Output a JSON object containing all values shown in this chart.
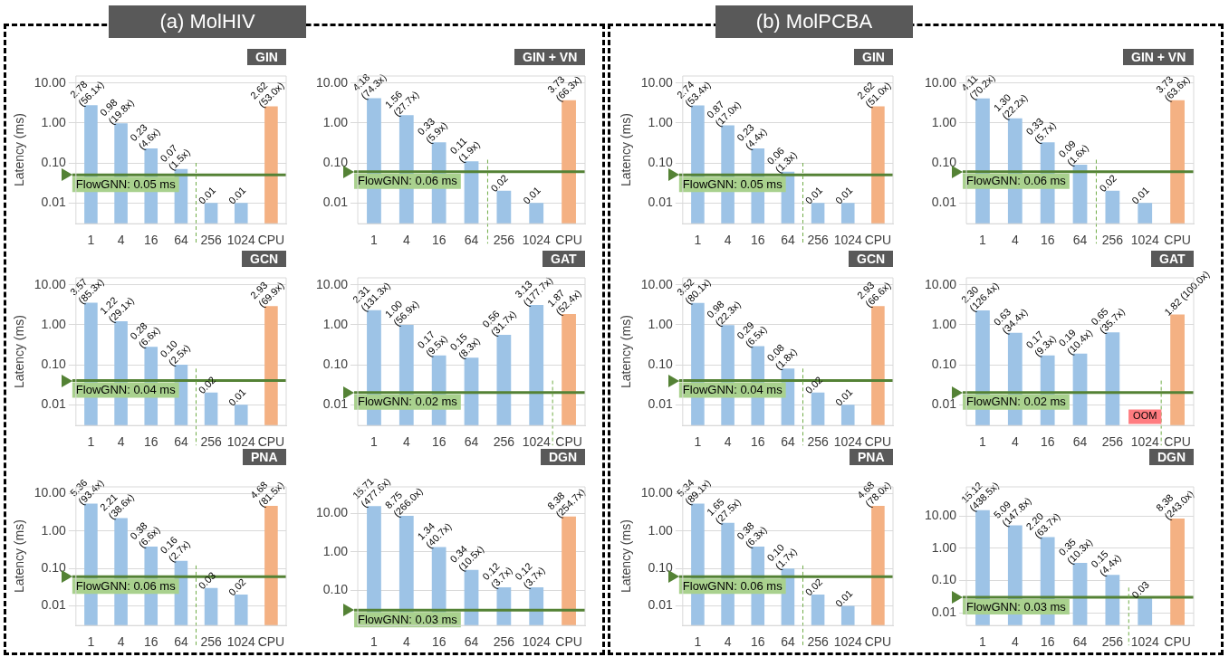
{
  "chart_data": [
    {
      "type": "bar",
      "subtitle": "(a) MolHIV",
      "title": "GIN",
      "ylabel": "Latency (ms)",
      "categories": [
        "1",
        "4",
        "16",
        "64",
        "256",
        "1024",
        "CPU"
      ],
      "values": [
        2.78,
        0.98,
        0.23,
        0.07,
        0.01,
        0.01,
        2.62
      ],
      "colors": [
        "#9dc3e6",
        "#9dc3e6",
        "#9dc3e6",
        "#9dc3e6",
        "#9dc3e6",
        "#9dc3e6",
        "#f4b183"
      ],
      "value_labels": [
        "2.78 (56.1x)",
        "0.98 (19.8x)",
        "0.23 (4.6x)",
        "0.07 (1.5x)",
        "0.01",
        "0.01",
        "2.62 (53.0x)"
      ],
      "log": "y",
      "ylim": [
        0.003,
        15
      ],
      "yticks": [
        {
          "value": 0.01,
          "label": "0.01"
        },
        {
          "value": 0.1,
          "label": "0.10"
        },
        {
          "value": 1,
          "label": "1.00"
        },
        {
          "value": 10,
          "label": "10.00"
        }
      ],
      "grid": "y",
      "ref_lines": [
        {
          "axis": "y",
          "value": 0.05,
          "label": "FlowGNN: 0.05 ms",
          "color": "#548235"
        },
        {
          "axis": "x",
          "value": "256",
          "line_style": "dashed",
          "color": "#70ad47"
        }
      ]
    },
    {
      "type": "bar",
      "title": "GIN + VN",
      "categories": [
        "1",
        "4",
        "16",
        "64",
        "256",
        "1024",
        "CPU"
      ],
      "values": [
        4.18,
        1.56,
        0.33,
        0.11,
        0.02,
        0.01,
        3.73
      ],
      "colors": [
        "#9dc3e6",
        "#9dc3e6",
        "#9dc3e6",
        "#9dc3e6",
        "#9dc3e6",
        "#9dc3e6",
        "#f4b183"
      ],
      "value_labels": [
        "4.18 (74.3x)",
        "1.56 (27.7x)",
        "0.33 (5.9x)",
        "0.11 (1.9x)",
        "0.02",
        "0.01",
        "3.73 (66.3x)"
      ],
      "log": "y",
      "ylim": [
        0.003,
        15
      ],
      "yticks": [
        {
          "value": 0.01,
          "label": "0.01"
        },
        {
          "value": 0.1,
          "label": "0.10"
        },
        {
          "value": 1,
          "label": "1.00"
        },
        {
          "value": 10,
          "label": "10.00"
        }
      ],
      "grid": "y",
      "ref_lines": [
        {
          "axis": "y",
          "value": 0.06,
          "label": "FlowGNN: 0.06 ms",
          "color": "#548235"
        },
        {
          "axis": "x",
          "value": "256",
          "line_style": "dashed",
          "color": "#70ad47"
        }
      ]
    },
    {
      "type": "bar",
      "title": "GIN",
      "ylabel": "Latency (ms)",
      "categories": [
        "1",
        "4",
        "16",
        "64",
        "256",
        "1024",
        "CPU"
      ],
      "values": [
        2.74,
        0.87,
        0.23,
        0.06,
        0.01,
        0.01,
        2.62
      ],
      "colors": [
        "#9dc3e6",
        "#9dc3e6",
        "#9dc3e6",
        "#9dc3e6",
        "#9dc3e6",
        "#9dc3e6",
        "#f4b183"
      ],
      "subtitle": "(b) MolPCBA",
      "value_labels": [
        "2.74 (53.4x)",
        "0.87 (17.0x)",
        "0.23 (4.4x)",
        "0.06 (1.3x)",
        "0.01",
        "0.01",
        "2.62 (51.0x)"
      ],
      "log": "y",
      "ylim": [
        0.003,
        15
      ],
      "yticks": [
        {
          "value": 0.01,
          "label": "0.01"
        },
        {
          "value": 0.1,
          "label": "0.10"
        },
        {
          "value": 1,
          "label": "1.00"
        },
        {
          "value": 10,
          "label": "10.00"
        }
      ],
      "grid": "y",
      "ref_lines": [
        {
          "axis": "y",
          "value": 0.05,
          "label": "FlowGNN: 0.05 ms",
          "color": "#548235"
        },
        {
          "axis": "x",
          "value": "256",
          "line_style": "dashed",
          "color": "#70ad47"
        }
      ]
    },
    {
      "type": "bar",
      "title": "GIN + VN",
      "categories": [
        "1",
        "4",
        "16",
        "64",
        "256",
        "1024",
        "CPU"
      ],
      "values": [
        4.11,
        1.3,
        0.33,
        0.09,
        0.02,
        0.01,
        3.73
      ],
      "colors": [
        "#9dc3e6",
        "#9dc3e6",
        "#9dc3e6",
        "#9dc3e6",
        "#9dc3e6",
        "#9dc3e6",
        "#f4b183"
      ],
      "value_labels": [
        "4.11 (70.2x)",
        "1.30 (22.2x)",
        "0.33 (5.7x)",
        "0.09 (1.6x)",
        "0.02",
        "0.01",
        "3.73 (63.6x)"
      ],
      "log": "y",
      "ylim": [
        0.003,
        15
      ],
      "yticks": [
        {
          "value": 0.01,
          "label": "0.01"
        },
        {
          "value": 0.1,
          "label": "0.10"
        },
        {
          "value": 1,
          "label": "1.00"
        },
        {
          "value": 10,
          "label": "10.00"
        }
      ],
      "grid": "y",
      "ref_lines": [
        {
          "axis": "y",
          "value": 0.06,
          "label": "FlowGNN: 0.06 ms",
          "color": "#548235"
        },
        {
          "axis": "x",
          "value": "256",
          "line_style": "dashed",
          "color": "#70ad47"
        }
      ]
    },
    {
      "type": "bar",
      "title": "GCN",
      "ylabel": "Latency (ms)",
      "categories": [
        "1",
        "4",
        "16",
        "64",
        "256",
        "1024",
        "CPU"
      ],
      "values": [
        3.57,
        1.22,
        0.28,
        0.1,
        0.02,
        0.01,
        2.93
      ],
      "colors": [
        "#9dc3e6",
        "#9dc3e6",
        "#9dc3e6",
        "#9dc3e6",
        "#9dc3e6",
        "#9dc3e6",
        "#f4b183"
      ],
      "value_labels": [
        "3.57 (85.3x)",
        "1.22 (29.1x)",
        "0.28 (6.6x)",
        "0.10 (2.5x)",
        "0.02",
        "0.01",
        "2.93 (69.9x)"
      ],
      "log": "y",
      "ylim": [
        0.003,
        15
      ],
      "yticks": [
        {
          "value": 0.01,
          "label": "0.01"
        },
        {
          "value": 0.1,
          "label": "0.10"
        },
        {
          "value": 1,
          "label": "1.00"
        },
        {
          "value": 10,
          "label": "10.00"
        }
      ],
      "grid": "y",
      "ref_lines": [
        {
          "axis": "y",
          "value": 0.04,
          "label": "FlowGNN: 0.04 ms",
          "color": "#548235"
        },
        {
          "axis": "x",
          "value": "256",
          "line_style": "dashed",
          "color": "#70ad47"
        }
      ]
    },
    {
      "type": "bar",
      "title": "GAT",
      "categories": [
        "1",
        "4",
        "16",
        "64",
        "256",
        "1024",
        "CPU"
      ],
      "values": [
        2.31,
        1.0,
        0.17,
        0.15,
        0.56,
        3.13,
        1.87
      ],
      "colors": [
        "#9dc3e6",
        "#9dc3e6",
        "#9dc3e6",
        "#9dc3e6",
        "#9dc3e6",
        "#9dc3e6",
        "#f4b183"
      ],
      "value_labels": [
        "2.31 (131.3x)",
        "1.00 (56.9x)",
        "0.17 (9.5x)",
        "0.15 (8.3x)",
        "0.56 (31.7x)",
        "3.13 (177.7x)",
        "1.87 (52.4x)"
      ],
      "log": "y",
      "ylim": [
        0.003,
        15
      ],
      "yticks": [
        {
          "value": 0.01,
          "label": "0.01"
        },
        {
          "value": 0.1,
          "label": "0.10"
        },
        {
          "value": 1,
          "label": "1.00"
        },
        {
          "value": 10,
          "label": "10.00"
        }
      ],
      "grid": "y",
      "ref_lines": [
        {
          "axis": "y",
          "value": 0.02,
          "label": "FlowGNN: 0.02 ms",
          "color": "#548235"
        },
        {
          "axis": "x",
          "value": "CPU",
          "line_style": "dashed",
          "color": "#70ad47"
        }
      ]
    },
    {
      "type": "bar",
      "title": "GCN",
      "ylabel": "Latency (ms)",
      "categories": [
        "1",
        "4",
        "16",
        "64",
        "256",
        "1024",
        "CPU"
      ],
      "values": [
        3.52,
        0.98,
        0.29,
        0.08,
        0.02,
        0.01,
        2.93
      ],
      "colors": [
        "#9dc3e6",
        "#9dc3e6",
        "#9dc3e6",
        "#9dc3e6",
        "#9dc3e6",
        "#9dc3e6",
        "#f4b183"
      ],
      "value_labels": [
        "3.52 (80.1x)",
        "0.98 (22.3x)",
        "0.29 (6.5x)",
        "0.08 (1.8x)",
        "0.02",
        "0.01",
        "2.93 (66.6x)"
      ],
      "log": "y",
      "ylim": [
        0.003,
        15
      ],
      "yticks": [
        {
          "value": 0.01,
          "label": "0.01"
        },
        {
          "value": 0.1,
          "label": "0.10"
        },
        {
          "value": 1,
          "label": "1.00"
        },
        {
          "value": 10,
          "label": "10.00"
        }
      ],
      "grid": "y",
      "ref_lines": [
        {
          "axis": "y",
          "value": 0.04,
          "label": "FlowGNN: 0.04 ms",
          "color": "#548235"
        },
        {
          "axis": "x",
          "value": "256",
          "line_style": "dashed",
          "color": "#70ad47"
        }
      ]
    },
    {
      "type": "bar",
      "title": "GAT",
      "categories": [
        "1",
        "4",
        "16",
        "64",
        "256",
        "1024",
        "CPU"
      ],
      "values": [
        2.3,
        0.63,
        0.17,
        0.19,
        0.65,
        null,
        1.82
      ],
      "colors": [
        "#9dc3e6",
        "#9dc3e6",
        "#9dc3e6",
        "#9dc3e6",
        "#9dc3e6",
        "#9dc3e6",
        "#f4b183"
      ],
      "value_labels": [
        "2.30 (126.4x)",
        "0.63 (34.4x)",
        "0.17 (9.3x)",
        "0.19 (10.4x)",
        "0.65 (35.7x)",
        null,
        "1.82 (100.0x)"
      ],
      "log": "y",
      "ylim": [
        0.003,
        15
      ],
      "yticks": [
        {
          "value": 0.01,
          "label": "0.01"
        },
        {
          "value": 0.1,
          "label": "0.10"
        },
        {
          "value": 1,
          "label": "1.00"
        },
        {
          "value": 10,
          "label": "10.00"
        }
      ],
      "grid": "y",
      "ref_lines": [
        {
          "axis": "y",
          "value": 0.02,
          "label": "FlowGNN: 0.02 ms",
          "color": "#548235"
        },
        {
          "axis": "x",
          "value": "CPU",
          "line_style": "dashed",
          "color": "#70ad47"
        }
      ],
      "annotations": [
        {
          "text": "OOM",
          "x": "1024",
          "y": 0.005
        }
      ]
    },
    {
      "type": "bar",
      "title": "PNA",
      "ylabel": "Latency (ms)",
      "categories": [
        "1",
        "4",
        "16",
        "64",
        "256",
        "1024",
        "CPU"
      ],
      "values": [
        5.36,
        2.21,
        0.38,
        0.16,
        0.03,
        0.02,
        4.68
      ],
      "colors": [
        "#9dc3e6",
        "#9dc3e6",
        "#9dc3e6",
        "#9dc3e6",
        "#9dc3e6",
        "#9dc3e6",
        "#f4b183"
      ],
      "value_labels": [
        "5.36 (93.4x)",
        "2.21 (38.6x)",
        "0.38 (6.6x)",
        "0.16 (2.7x)",
        "0.03",
        "0.02",
        "4.68 (81.5x)"
      ],
      "log": "y",
      "ylim": [
        0.003,
        15
      ],
      "yticks": [
        {
          "value": 0.01,
          "label": "0.01"
        },
        {
          "value": 0.1,
          "label": "0.10"
        },
        {
          "value": 1,
          "label": "1.00"
        },
        {
          "value": 10,
          "label": "10.00"
        }
      ],
      "grid": "y",
      "ref_lines": [
        {
          "axis": "y",
          "value": 0.06,
          "label": "FlowGNN: 0.06 ms",
          "color": "#548235"
        },
        {
          "axis": "x",
          "value": "256",
          "line_style": "dashed",
          "color": "#70ad47"
        }
      ]
    },
    {
      "type": "bar",
      "title": "DGN",
      "categories": [
        "1",
        "4",
        "16",
        "64",
        "256",
        "1024",
        "CPU"
      ],
      "values": [
        15.71,
        8.75,
        1.34,
        0.34,
        0.12,
        0.12,
        8.38
      ],
      "colors": [
        "#9dc3e6",
        "#9dc3e6",
        "#9dc3e6",
        "#9dc3e6",
        "#9dc3e6",
        "#9dc3e6",
        "#f4b183"
      ],
      "value_labels": [
        "15.71 (477.6x)",
        "8.75 (266.0x)",
        "1.34 (40.7x)",
        "0.34 (10.5x)",
        "0.12 (3.7x)",
        "0.12 (3.7x)",
        "8.38 (254.7x)"
      ],
      "log": "y",
      "ylim": [
        0.012,
        50
      ],
      "yticks": [
        {
          "value": 0.1,
          "label": "0.10"
        },
        {
          "value": 1,
          "label": "1.00"
        },
        {
          "value": 10,
          "label": "10.00"
        }
      ],
      "grid": "y",
      "ref_lines": [
        {
          "axis": "y",
          "value": 0.03,
          "label": "FlowGNN: 0.03 ms",
          "color": "#548235"
        }
      ]
    },
    {
      "type": "bar",
      "title": "PNA",
      "ylabel": "Latency (ms)",
      "categories": [
        "1",
        "4",
        "16",
        "64",
        "256",
        "1024",
        "CPU"
      ],
      "values": [
        5.34,
        1.65,
        0.38,
        0.1,
        0.02,
        0.01,
        4.68
      ],
      "colors": [
        "#9dc3e6",
        "#9dc3e6",
        "#9dc3e6",
        "#9dc3e6",
        "#9dc3e6",
        "#9dc3e6",
        "#f4b183"
      ],
      "value_labels": [
        "5.34 (89.1x)",
        "1.65 (27.5x)",
        "0.38 (6.3x)",
        "0.10 (1.7x)",
        "0.02",
        "0.01",
        "4.68 (78.0x)"
      ],
      "log": "y",
      "ylim": [
        0.003,
        15
      ],
      "yticks": [
        {
          "value": 0.01,
          "label": "0.01"
        },
        {
          "value": 0.1,
          "label": "0.10"
        },
        {
          "value": 1,
          "label": "1.00"
        },
        {
          "value": 10,
          "label": "10.00"
        }
      ],
      "grid": "y",
      "ref_lines": [
        {
          "axis": "y",
          "value": 0.06,
          "label": "FlowGNN: 0.06 ms",
          "color": "#548235"
        },
        {
          "axis": "x",
          "value": "256",
          "line_style": "dashed",
          "color": "#70ad47"
        }
      ]
    },
    {
      "type": "bar",
      "title": "DGN",
      "categories": [
        "1",
        "4",
        "16",
        "64",
        "256",
        "1024",
        "CPU"
      ],
      "values": [
        15.12,
        5.09,
        2.2,
        0.35,
        0.15,
        0.03,
        8.38
      ],
      "colors": [
        "#9dc3e6",
        "#9dc3e6",
        "#9dc3e6",
        "#9dc3e6",
        "#9dc3e6",
        "#9dc3e6",
        "#f4b183"
      ],
      "value_labels": [
        "15.12 (438.5x)",
        "5.09 (147.8x)",
        "2.20 (63.7x)",
        "0.35 (10.3x)",
        "0.15 (4.4x)",
        "0.03",
        "8.38 (243.0x)"
      ],
      "log": "y",
      "ylim": [
        0.004,
        80
      ],
      "yticks": [
        {
          "value": 0.01,
          "label": "0.01"
        },
        {
          "value": 0.1,
          "label": "0.10"
        },
        {
          "value": 1,
          "label": "1.00"
        },
        {
          "value": 10,
          "label": "10.00"
        }
      ],
      "grid": "y",
      "ref_lines": [
        {
          "axis": "y",
          "value": 0.03,
          "label": "FlowGNN: 0.03 ms",
          "color": "#548235"
        },
        {
          "axis": "x",
          "value": "1024",
          "line_style": "dashed",
          "color": "#70ad47"
        }
      ]
    }
  ]
}
